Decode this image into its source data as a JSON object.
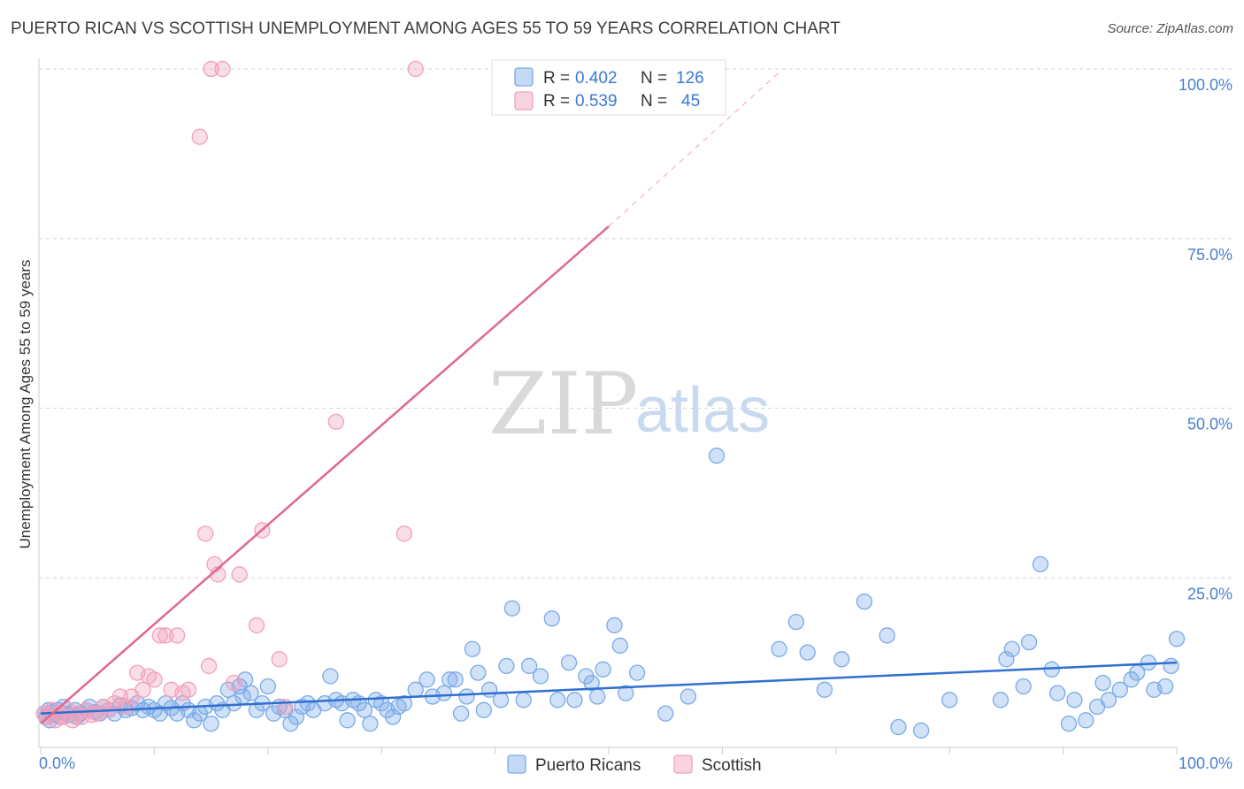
{
  "title": "PUERTO RICAN VS SCOTTISH UNEMPLOYMENT AMONG AGES 55 TO 59 YEARS CORRELATION CHART",
  "source": "Source: ZipAtlas.com",
  "watermark": {
    "zip": "ZIP",
    "atlas": "atlas"
  },
  "legend": {
    "rows": [
      {
        "r_label": "R =",
        "r_value": "0.402",
        "n_label": "N =",
        "n_value": "126",
        "color": "#7aaae8"
      },
      {
        "r_label": "R =",
        "r_value": "0.539",
        "n_label": "N =",
        "n_value": "45",
        "color": "#f2a0bb"
      }
    ]
  },
  "bottom_legend": [
    {
      "label": "Puerto Ricans",
      "color": "#7aaae8"
    },
    {
      "label": "Scottish",
      "color": "#f2a0bb"
    }
  ],
  "chart_data": {
    "type": "scatter",
    "title": "PUERTO RICAN VS SCOTTISH UNEMPLOYMENT AMONG AGES 55 TO 59 YEARS CORRELATION CHART",
    "xlabel": "",
    "ylabel": "Unemployment Among Ages 55 to 59 years",
    "xlim": [
      0,
      100
    ],
    "ylim": [
      0,
      100
    ],
    "x_tick_labels": [
      "0.0%",
      "100.0%"
    ],
    "y_tick_labels": [
      "25.0%",
      "50.0%",
      "75.0%",
      "100.0%"
    ],
    "y_ticks": [
      25,
      50,
      75,
      100
    ],
    "grid": true,
    "legend_position": "top-center",
    "series": [
      {
        "name": "Puerto Ricans",
        "color": "#7aaae8",
        "line_color": "#2f6fcf",
        "trend": {
          "x": [
            0,
            100
          ],
          "y": [
            5.0,
            12.5
          ]
        },
        "points": [
          [
            0.3,
            5.0
          ],
          [
            0.5,
            4.5
          ],
          [
            0.7,
            5.5
          ],
          [
            0.8,
            4.0
          ],
          [
            1.0,
            5.2
          ],
          [
            1.2,
            4.8
          ],
          [
            1.5,
            5.5
          ],
          [
            1.8,
            4.5
          ],
          [
            2.0,
            6.0
          ],
          [
            2.2,
            5.0
          ],
          [
            2.5,
            4.8
          ],
          [
            3.0,
            5.5
          ],
          [
            3.2,
            4.5
          ],
          [
            3.5,
            5.0
          ],
          [
            4.0,
            5.5
          ],
          [
            4.3,
            6.0
          ],
          [
            4.8,
            5.2
          ],
          [
            5.2,
            5.0
          ],
          [
            5.5,
            6.0
          ],
          [
            6.0,
            5.5
          ],
          [
            6.5,
            5.0
          ],
          [
            7.0,
            6.2
          ],
          [
            7.5,
            5.5
          ],
          [
            8.0,
            5.8
          ],
          [
            8.5,
            6.5
          ],
          [
            9.0,
            5.5
          ],
          [
            9.5,
            6.0
          ],
          [
            10.0,
            5.5
          ],
          [
            10.5,
            5.0
          ],
          [
            11.0,
            6.5
          ],
          [
            11.5,
            5.8
          ],
          [
            12.0,
            5.0
          ],
          [
            12.5,
            6.5
          ],
          [
            13.0,
            5.5
          ],
          [
            13.5,
            4.0
          ],
          [
            14.0,
            5.0
          ],
          [
            14.5,
            6.0
          ],
          [
            15.0,
            3.5
          ],
          [
            15.5,
            6.5
          ],
          [
            16.0,
            5.5
          ],
          [
            16.5,
            8.5
          ],
          [
            17.0,
            6.5
          ],
          [
            17.5,
            9.0
          ],
          [
            17.8,
            7.5
          ],
          [
            18.0,
            10.0
          ],
          [
            18.5,
            8.0
          ],
          [
            19.0,
            5.5
          ],
          [
            19.5,
            6.5
          ],
          [
            20.0,
            9.0
          ],
          [
            20.5,
            5.0
          ],
          [
            21.0,
            6.0
          ],
          [
            21.5,
            5.5
          ],
          [
            22.0,
            3.5
          ],
          [
            22.5,
            4.5
          ],
          [
            23.0,
            6.0
          ],
          [
            23.5,
            6.5
          ],
          [
            24.0,
            5.5
          ],
          [
            25.0,
            6.5
          ],
          [
            25.5,
            10.5
          ],
          [
            26.0,
            7.0
          ],
          [
            26.5,
            6.5
          ],
          [
            27.0,
            4.0
          ],
          [
            27.5,
            7.0
          ],
          [
            28.0,
            6.5
          ],
          [
            28.5,
            5.5
          ],
          [
            29.0,
            3.5
          ],
          [
            29.5,
            7.0
          ],
          [
            30.0,
            6.5
          ],
          [
            30.5,
            5.5
          ],
          [
            31.0,
            4.5
          ],
          [
            31.5,
            6.0
          ],
          [
            32.0,
            6.5
          ],
          [
            33.0,
            8.5
          ],
          [
            34.0,
            10.0
          ],
          [
            34.5,
            7.5
          ],
          [
            35.5,
            8.0
          ],
          [
            36.0,
            10.0
          ],
          [
            36.5,
            10.0
          ],
          [
            37.0,
            5.0
          ],
          [
            37.5,
            7.5
          ],
          [
            38.0,
            14.5
          ],
          [
            38.5,
            11.0
          ],
          [
            39.0,
            5.5
          ],
          [
            39.5,
            8.5
          ],
          [
            40.5,
            7.0
          ],
          [
            41.0,
            12.0
          ],
          [
            41.5,
            20.5
          ],
          [
            42.5,
            7.0
          ],
          [
            43.0,
            12.0
          ],
          [
            44.0,
            10.5
          ],
          [
            45.0,
            19.0
          ],
          [
            45.5,
            7.0
          ],
          [
            46.5,
            12.5
          ],
          [
            47.0,
            7.0
          ],
          [
            48.0,
            10.5
          ],
          [
            48.5,
            9.5
          ],
          [
            49.0,
            7.5
          ],
          [
            49.5,
            11.5
          ],
          [
            50.5,
            18.0
          ],
          [
            51.0,
            15.0
          ],
          [
            51.5,
            8.0
          ],
          [
            52.5,
            11.0
          ],
          [
            55.0,
            5.0
          ],
          [
            57.0,
            7.5
          ],
          [
            59.5,
            43.0
          ],
          [
            65.0,
            14.5
          ],
          [
            66.5,
            18.5
          ],
          [
            67.5,
            14.0
          ],
          [
            69.0,
            8.5
          ],
          [
            70.5,
            13.0
          ],
          [
            72.5,
            21.5
          ],
          [
            74.5,
            16.5
          ],
          [
            75.5,
            3.0
          ],
          [
            77.5,
            2.5
          ],
          [
            80.0,
            7.0
          ],
          [
            84.5,
            7.0
          ],
          [
            85.0,
            13.0
          ],
          [
            85.5,
            14.5
          ],
          [
            86.5,
            9.0
          ],
          [
            87.0,
            15.5
          ],
          [
            88.0,
            27.0
          ],
          [
            89.0,
            11.5
          ],
          [
            89.5,
            8.0
          ],
          [
            90.5,
            3.5
          ],
          [
            91.0,
            7.0
          ],
          [
            92.0,
            4.0
          ],
          [
            93.0,
            6.0
          ],
          [
            93.5,
            9.5
          ],
          [
            94.0,
            7.0
          ],
          [
            95.0,
            8.5
          ],
          [
            96.0,
            10.0
          ],
          [
            96.5,
            11.0
          ],
          [
            97.5,
            12.5
          ],
          [
            98.0,
            8.5
          ],
          [
            99.0,
            9.0
          ],
          [
            99.5,
            12.0
          ],
          [
            100.0,
            16.0
          ]
        ]
      },
      {
        "name": "Scottish",
        "color": "#f2a0bb",
        "line_color": "#e2668e",
        "trend": {
          "x": [
            0,
            50
          ],
          "y": [
            3.5,
            76.8
          ]
        },
        "trend_extension": {
          "x": [
            50,
            65
          ],
          "y": [
            76.8,
            99.5
          ]
        },
        "points": [
          [
            0.3,
            5.0
          ],
          [
            0.6,
            4.5
          ],
          [
            1.0,
            5.5
          ],
          [
            1.3,
            4.0
          ],
          [
            1.6,
            5.0
          ],
          [
            2.0,
            4.5
          ],
          [
            2.4,
            5.5
          ],
          [
            2.8,
            4.0
          ],
          [
            3.2,
            5.0
          ],
          [
            3.6,
            4.5
          ],
          [
            4.0,
            5.5
          ],
          [
            4.5,
            4.8
          ],
          [
            5.0,
            5.0
          ],
          [
            5.5,
            6.0
          ],
          [
            6.0,
            5.5
          ],
          [
            6.5,
            6.5
          ],
          [
            7.0,
            7.5
          ],
          [
            7.5,
            6.0
          ],
          [
            8.0,
            7.5
          ],
          [
            8.5,
            11.0
          ],
          [
            9.0,
            8.5
          ],
          [
            9.5,
            10.5
          ],
          [
            10.0,
            10.0
          ],
          [
            10.5,
            16.5
          ],
          [
            11.0,
            16.5
          ],
          [
            11.5,
            8.5
          ],
          [
            12.0,
            16.5
          ],
          [
            12.5,
            8.0
          ],
          [
            13.0,
            8.5
          ],
          [
            14.0,
            90.0
          ],
          [
            14.5,
            31.5
          ],
          [
            14.8,
            12.0
          ],
          [
            15.0,
            100.0
          ],
          [
            15.3,
            27.0
          ],
          [
            15.6,
            25.5
          ],
          [
            16.0,
            100.0
          ],
          [
            17.0,
            9.5
          ],
          [
            17.5,
            25.5
          ],
          [
            19.0,
            18.0
          ],
          [
            19.5,
            32.0
          ],
          [
            21.0,
            13.0
          ],
          [
            21.5,
            6.0
          ],
          [
            26.0,
            48.0
          ],
          [
            32.0,
            31.5
          ],
          [
            33.0,
            100.0
          ]
        ]
      }
    ]
  }
}
